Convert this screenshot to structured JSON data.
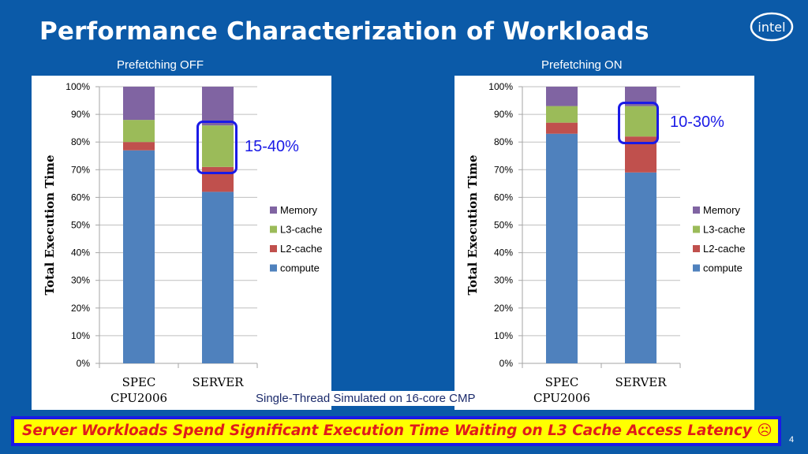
{
  "slide": {
    "title": "Performance Characterization of Workloads",
    "footnote": "Single-Thread Simulated on 16-core CMP",
    "banner": "Server Workloads Spend Significant Execution Time Waiting on L3 Cache Access Latency ☹",
    "page_number": "4",
    "logo_text": "intel"
  },
  "colors": {
    "background": "#0b5aa8",
    "compute": "#4f81bd",
    "l2": "#c0504d",
    "l3": "#9bbb59",
    "memory": "#8064a2",
    "callout": "#1a1ae6",
    "banner_bg": "#ffff00",
    "banner_text": "#e01b1b"
  },
  "chart_data": [
    {
      "type": "bar",
      "stacked": true,
      "title": "Prefetching OFF",
      "ylabel": "Total Execution Time",
      "ylim": [
        0,
        100
      ],
      "yticks": [
        "0%",
        "10%",
        "20%",
        "30%",
        "40%",
        "50%",
        "60%",
        "70%",
        "80%",
        "90%",
        "100%"
      ],
      "categories": [
        "SPEC CPU2006",
        "SERVER"
      ],
      "category_lines": [
        [
          "SPEC",
          "CPU2006"
        ],
        [
          "SERVER"
        ]
      ],
      "series": [
        {
          "name": "compute",
          "values": [
            77,
            62
          ]
        },
        {
          "name": "L2-cache",
          "values": [
            3,
            9
          ]
        },
        {
          "name": "L3-cache",
          "values": [
            8,
            15
          ]
        },
        {
          "name": "Memory",
          "values": [
            12,
            14
          ]
        }
      ],
      "legend": "right",
      "annotation": "15-40%"
    },
    {
      "type": "bar",
      "stacked": true,
      "title": "Prefetching ON",
      "ylabel": "Total Execution Time",
      "ylim": [
        0,
        100
      ],
      "yticks": [
        "0%",
        "10%",
        "20%",
        "30%",
        "40%",
        "50%",
        "60%",
        "70%",
        "80%",
        "90%",
        "100%"
      ],
      "categories": [
        "SPEC CPU2006",
        "SERVER"
      ],
      "category_lines": [
        [
          "SPEC",
          "CPU2006"
        ],
        [
          "SERVER"
        ]
      ],
      "series": [
        {
          "name": "compute",
          "values": [
            83,
            69
          ]
        },
        {
          "name": "L2-cache",
          "values": [
            4,
            13
          ]
        },
        {
          "name": "L3-cache",
          "values": [
            6,
            11
          ]
        },
        {
          "name": "Memory",
          "values": [
            7,
            7
          ]
        }
      ],
      "legend": "right",
      "annotation": "10-30%"
    }
  ]
}
